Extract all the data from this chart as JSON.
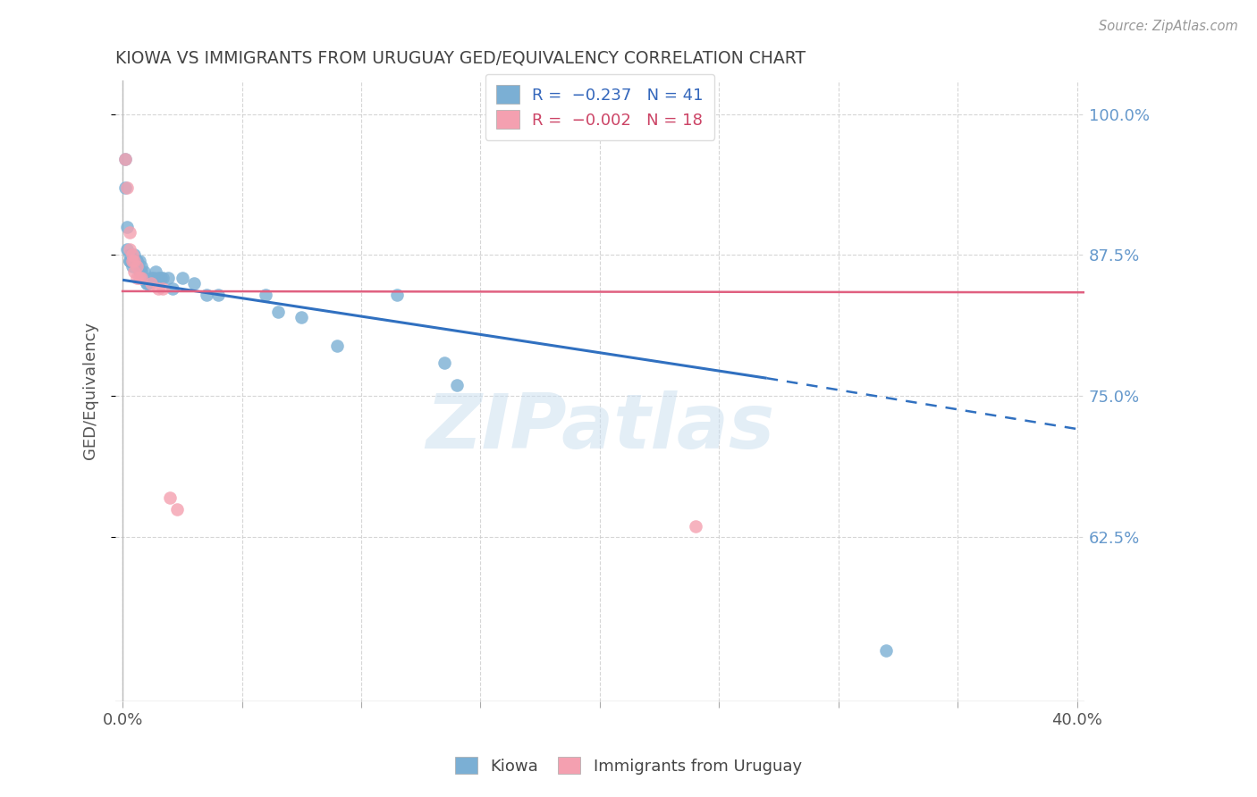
{
  "title": "KIOWA VS IMMIGRANTS FROM URUGUAY GED/EQUIVALENCY CORRELATION CHART",
  "source": "Source: ZipAtlas.com",
  "ylabel": "GED/Equivalency",
  "xlim": [
    -0.003,
    0.403
  ],
  "ylim": [
    0.48,
    1.03
  ],
  "yticks": [
    0.625,
    0.75,
    0.875,
    1.0
  ],
  "ytick_labels": [
    "62.5%",
    "75.0%",
    "87.5%",
    "100.0%"
  ],
  "xticks": [
    0.0,
    0.05,
    0.1,
    0.15,
    0.2,
    0.25,
    0.3,
    0.35,
    0.4
  ],
  "xtick_labels": [
    "0.0%",
    "",
    "",
    "",
    "",
    "",
    "",
    "",
    "40.0%"
  ],
  "kiowa_points": [
    [
      0.001,
      0.96
    ],
    [
      0.001,
      0.935
    ],
    [
      0.002,
      0.9
    ],
    [
      0.002,
      0.88
    ],
    [
      0.003,
      0.875
    ],
    [
      0.003,
      0.87
    ],
    [
      0.003,
      0.87
    ],
    [
      0.004,
      0.87
    ],
    [
      0.004,
      0.865
    ],
    [
      0.005,
      0.87
    ],
    [
      0.005,
      0.875
    ],
    [
      0.006,
      0.87
    ],
    [
      0.006,
      0.87
    ],
    [
      0.007,
      0.87
    ],
    [
      0.007,
      0.86
    ],
    [
      0.008,
      0.865
    ],
    [
      0.008,
      0.86
    ],
    [
      0.009,
      0.86
    ],
    [
      0.01,
      0.85
    ],
    [
      0.01,
      0.85
    ],
    [
      0.011,
      0.85
    ],
    [
      0.012,
      0.855
    ],
    [
      0.013,
      0.855
    ],
    [
      0.014,
      0.86
    ],
    [
      0.015,
      0.855
    ],
    [
      0.016,
      0.855
    ],
    [
      0.017,
      0.855
    ],
    [
      0.019,
      0.855
    ],
    [
      0.021,
      0.845
    ],
    [
      0.025,
      0.855
    ],
    [
      0.03,
      0.85
    ],
    [
      0.035,
      0.84
    ],
    [
      0.04,
      0.84
    ],
    [
      0.06,
      0.84
    ],
    [
      0.065,
      0.825
    ],
    [
      0.075,
      0.82
    ],
    [
      0.09,
      0.795
    ],
    [
      0.115,
      0.84
    ],
    [
      0.135,
      0.78
    ],
    [
      0.14,
      0.76
    ],
    [
      0.32,
      0.525
    ]
  ],
  "uruguay_points": [
    [
      0.001,
      0.96
    ],
    [
      0.002,
      0.935
    ],
    [
      0.003,
      0.895
    ],
    [
      0.003,
      0.88
    ],
    [
      0.004,
      0.875
    ],
    [
      0.004,
      0.87
    ],
    [
      0.005,
      0.87
    ],
    [
      0.005,
      0.86
    ],
    [
      0.006,
      0.865
    ],
    [
      0.006,
      0.855
    ],
    [
      0.007,
      0.855
    ],
    [
      0.008,
      0.855
    ],
    [
      0.012,
      0.85
    ],
    [
      0.015,
      0.845
    ],
    [
      0.017,
      0.845
    ],
    [
      0.02,
      0.66
    ],
    [
      0.023,
      0.65
    ],
    [
      0.24,
      0.635
    ]
  ],
  "kiowa_color": "#7bafd4",
  "uruguay_color": "#f4a0b0",
  "kiowa_line_color": "#3070c0",
  "uruguay_line_color": "#e06080",
  "kiowa_line_x0": 0.0,
  "kiowa_line_y0": 0.853,
  "kiowa_line_solid_x1": 0.27,
  "kiowa_line_solid_y1": 0.766,
  "kiowa_line_dash_x1": 0.403,
  "kiowa_line_dash_y1": 0.72,
  "uruguay_line_x0": 0.0,
  "uruguay_line_y0": 0.843,
  "uruguay_line_x1": 0.403,
  "uruguay_line_y1": 0.842,
  "watermark": "ZIPatlas",
  "background_color": "#ffffff",
  "grid_color": "#cccccc",
  "right_axis_color": "#6699cc",
  "title_color": "#444444"
}
